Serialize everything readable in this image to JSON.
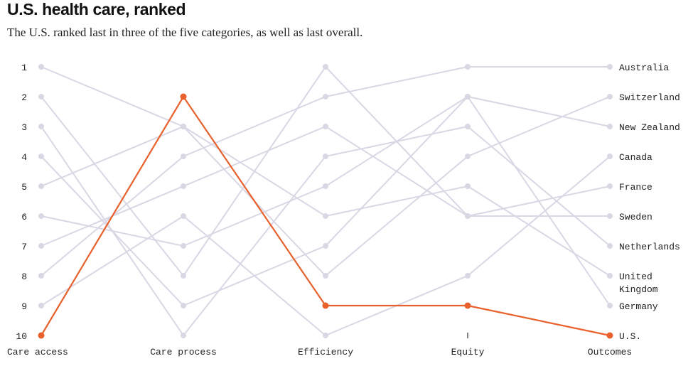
{
  "title": "U.S. health care, ranked",
  "subtitle": "The U.S. ranked last in three of the five categories, as well as last overall.",
  "colors": {
    "highlight": "#e8612c",
    "other": "#d9d7e4"
  },
  "chart_data": {
    "type": "line",
    "title": "U.S. health care, ranked",
    "subtitle": "The U.S. ranked last in three of the five categories, as well as last overall.",
    "categories": [
      "Care access",
      "Care process",
      "Efficiency",
      "Equity",
      "Outcomes"
    ],
    "y_ticks": [
      "1",
      "2",
      "3",
      "4",
      "5",
      "6",
      "7",
      "8",
      "9",
      "10"
    ],
    "ylim": [
      1,
      10
    ],
    "y_inverted": true,
    "highlight_series": "U.S.",
    "series": [
      {
        "name": "Australia",
        "values": [
          8,
          4,
          2,
          1,
          1
        ]
      },
      {
        "name": "Switzerland",
        "values": [
          5,
          3,
          8,
          4,
          2
        ]
      },
      {
        "name": "New Zealand",
        "values": [
          4,
          9,
          7,
          2,
          3
        ]
      },
      {
        "name": "Canada",
        "values": [
          9,
          6,
          10,
          8,
          4
        ]
      },
      {
        "name": "France",
        "values": [
          2,
          8,
          1,
          6,
          5
        ]
      },
      {
        "name": "Sweden",
        "values": [
          7,
          5,
          3,
          6,
          6
        ]
      },
      {
        "name": "Netherlands",
        "values": [
          3,
          10,
          4,
          3,
          7
        ]
      },
      {
        "name": "United Kingdom",
        "values": [
          1,
          3,
          6,
          5,
          8
        ]
      },
      {
        "name": "Germany",
        "values": [
          6,
          7,
          5,
          2,
          9
        ]
      },
      {
        "name": "U.S.",
        "values": [
          10,
          2,
          9,
          9,
          10
        ]
      }
    ]
  }
}
